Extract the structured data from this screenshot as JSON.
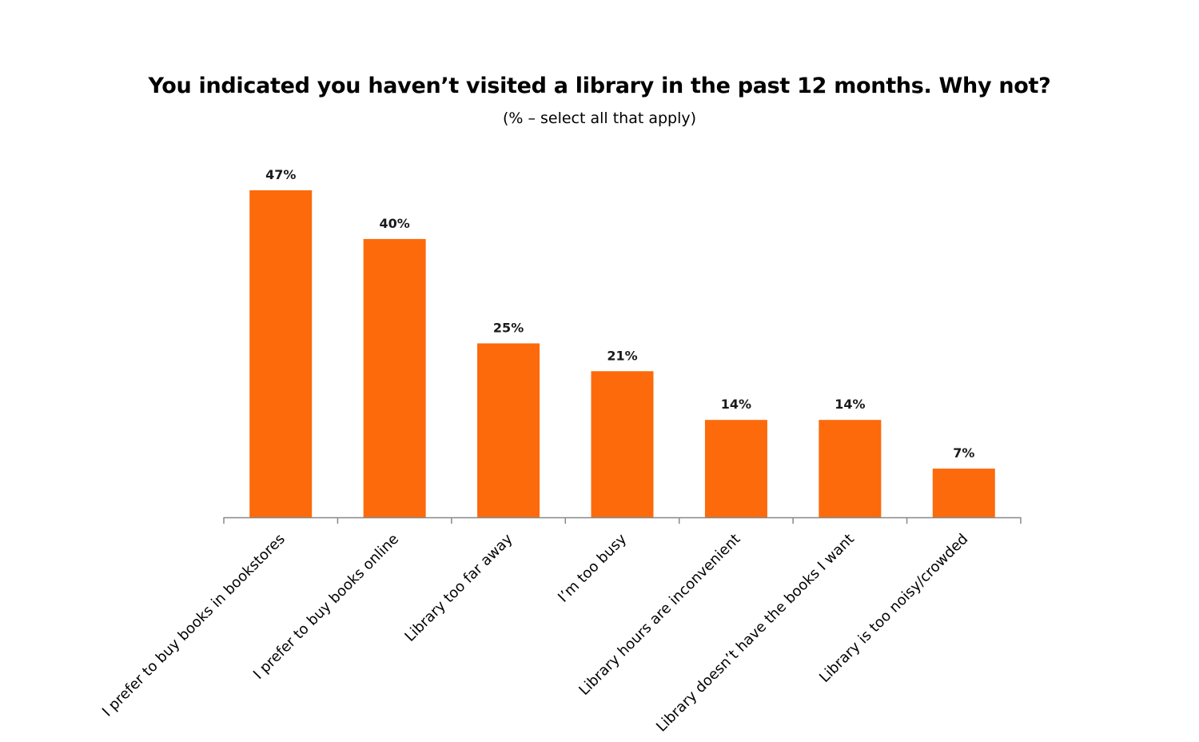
{
  "chart_data": {
    "type": "bar",
    "title": "You indicated you haven’t visited a library in the past 12 months. Why not?",
    "subtitle": "(% – select all that apply)",
    "categories": [
      "I prefer to buy books in bookstores",
      "I prefer to buy books online",
      "Library too far away",
      "I’m too busy",
      "Library hours are inconvenient",
      "Library doesn’t have the books I want",
      "Library is too noisy/crowded"
    ],
    "values": [
      47,
      40,
      25,
      21,
      14,
      14,
      7
    ],
    "data_labels": [
      "47%",
      "40%",
      "25%",
      "21%",
      "14%",
      "14%",
      "7%"
    ],
    "ylim": [
      0,
      47
    ],
    "xlabel": "",
    "ylabel": "",
    "grid": false,
    "legend": "none",
    "bar_color": "#fc6a0b",
    "axis_color": "#888888"
  }
}
